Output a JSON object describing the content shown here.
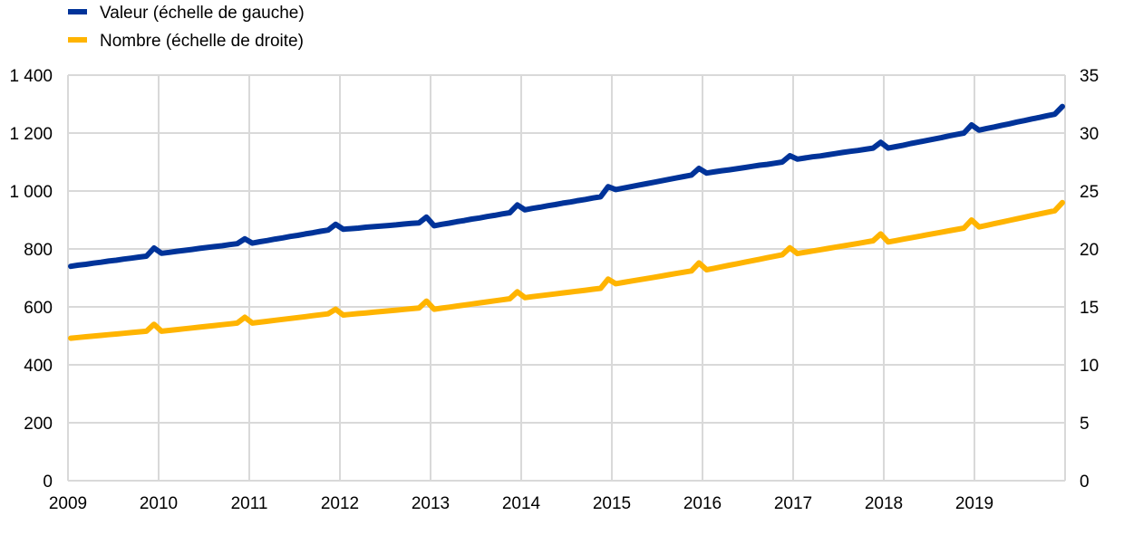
{
  "chart_data": {
    "type": "line",
    "title": "",
    "legend_placement": "top-left",
    "grid": true,
    "x_start": "2009-01",
    "x_frequency": "monthly",
    "x_tick_labels": [
      "2009",
      "2010",
      "2011",
      "2012",
      "2013",
      "2014",
      "2015",
      "2016",
      "2017",
      "2018",
      "2019"
    ],
    "x_range": [
      2009,
      2020
    ],
    "y_left": {
      "ylim": [
        0,
        1400
      ],
      "ticks": [
        "0",
        "200",
        "400",
        "600",
        "800",
        "1 000",
        "1 200",
        "1 400"
      ],
      "tick_values": [
        0,
        200,
        400,
        600,
        800,
        1000,
        1200,
        1400
      ]
    },
    "y_right": {
      "ylim": [
        0,
        35
      ],
      "ticks": [
        "0",
        "5",
        "10",
        "15",
        "20",
        "25",
        "30",
        "35"
      ],
      "tick_values": [
        0,
        5,
        10,
        15,
        20,
        25,
        30,
        35
      ]
    },
    "series": [
      {
        "name": "Valeur (échelle de gauche)",
        "axis": "left",
        "color": "#003399",
        "values": [
          740,
          744,
          747,
          751,
          754,
          758,
          761,
          765,
          768,
          772,
          775,
          803,
          785,
          788,
          792,
          795,
          798,
          802,
          805,
          808,
          811,
          815,
          818,
          835,
          820,
          825,
          829,
          834,
          838,
          843,
          847,
          852,
          856,
          861,
          865,
          885,
          868,
          870,
          872,
          875,
          877,
          879,
          881,
          883,
          886,
          888,
          890,
          910,
          880,
          885,
          889,
          894,
          898,
          903,
          907,
          912,
          916,
          921,
          925,
          952,
          935,
          940,
          944,
          949,
          953,
          958,
          962,
          967,
          971,
          976,
          980,
          1015,
          1005,
          1010,
          1015,
          1020,
          1025,
          1030,
          1035,
          1040,
          1045,
          1050,
          1055,
          1078,
          1062,
          1066,
          1070,
          1073,
          1077,
          1081,
          1085,
          1089,
          1092,
          1096,
          1100,
          1122,
          1110,
          1114,
          1118,
          1121,
          1125,
          1129,
          1133,
          1137,
          1140,
          1144,
          1148,
          1168,
          1148,
          1153,
          1158,
          1164,
          1169,
          1174,
          1179,
          1184,
          1190,
          1195,
          1200,
          1228,
          1210,
          1216,
          1221,
          1227,
          1232,
          1238,
          1243,
          1249,
          1254,
          1260,
          1265,
          1292
        ]
      },
      {
        "name": "Nombre (échelle de droite)",
        "axis": "right",
        "color": "#FFB400",
        "values": [
          12.3,
          12.36,
          12.42,
          12.48,
          12.54,
          12.6,
          12.66,
          12.72,
          12.78,
          12.84,
          12.9,
          13.5,
          12.9,
          12.97,
          13.04,
          13.11,
          13.18,
          13.25,
          13.32,
          13.39,
          13.46,
          13.53,
          13.6,
          14.1,
          13.6,
          13.68,
          13.76,
          13.84,
          13.92,
          14.0,
          14.08,
          14.16,
          14.24,
          14.32,
          14.4,
          14.8,
          14.3,
          14.36,
          14.42,
          14.48,
          14.54,
          14.6,
          14.66,
          14.72,
          14.78,
          14.84,
          14.9,
          15.5,
          14.8,
          14.89,
          14.98,
          15.07,
          15.16,
          15.25,
          15.34,
          15.43,
          15.52,
          15.61,
          15.7,
          16.3,
          15.8,
          15.88,
          15.96,
          16.04,
          16.12,
          16.2,
          16.28,
          16.36,
          16.44,
          16.52,
          16.6,
          17.4,
          17.0,
          17.11,
          17.22,
          17.33,
          17.44,
          17.55,
          17.66,
          17.77,
          17.88,
          17.99,
          18.1,
          18.8,
          18.2,
          18.33,
          18.46,
          18.59,
          18.72,
          18.85,
          18.98,
          19.11,
          19.24,
          19.37,
          19.5,
          20.1,
          19.6,
          19.71,
          19.82,
          19.93,
          20.04,
          20.15,
          20.26,
          20.37,
          20.48,
          20.59,
          20.7,
          21.3,
          20.6,
          20.72,
          20.84,
          20.96,
          21.08,
          21.2,
          21.32,
          21.44,
          21.56,
          21.68,
          21.8,
          22.5,
          21.9,
          22.04,
          22.18,
          22.32,
          22.46,
          22.6,
          22.74,
          22.88,
          23.02,
          23.16,
          23.3,
          24.0
        ]
      }
    ]
  }
}
